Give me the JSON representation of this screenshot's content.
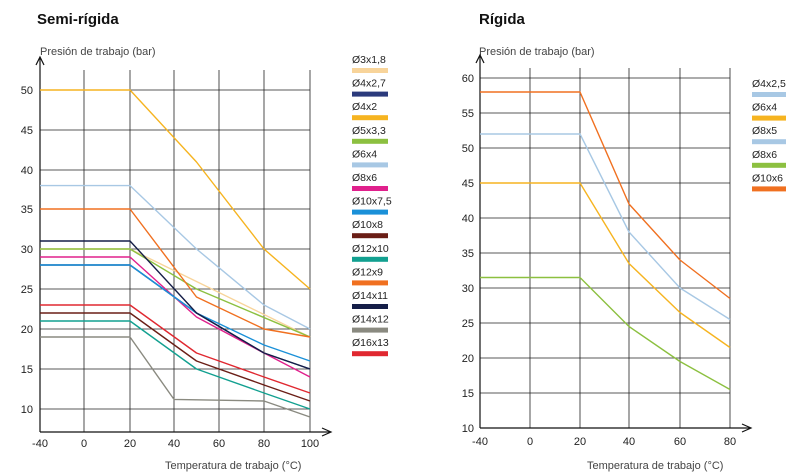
{
  "chart_data": [
    {
      "type": "line",
      "title": "Semi-rígida",
      "ylabel": "Presión de trabajo (bar)",
      "xlabel": "Temperatura de trabajo (°C)",
      "x_ticks": [
        -40,
        0,
        20,
        40,
        60,
        80,
        100
      ],
      "y_ticks": [
        10,
        15,
        20,
        25,
        30,
        35,
        40,
        45,
        50
      ],
      "xlim": [
        -40,
        100
      ],
      "ylim": [
        8,
        52
      ],
      "grid": true,
      "legend_position": "right",
      "series": [
        {
          "name": "Ø3x1,8",
          "color": "#f8d49a",
          "points": [
            [
              -40,
              30
            ],
            [
              20,
              30
            ],
            [
              100,
              19
            ]
          ]
        },
        {
          "name": "Ø4x2,7",
          "color": "#2b3a7c",
          "points": [
            [
              -40,
              28
            ],
            [
              20,
              28
            ],
            [
              50,
              22
            ],
            [
              80,
              17
            ],
            [
              100,
              15
            ]
          ]
        },
        {
          "name": "Ø4x2",
          "color": "#f6b420",
          "points": [
            [
              -40,
              50
            ],
            [
              20,
              50
            ],
            [
              50,
              41
            ],
            [
              80,
              30
            ],
            [
              100,
              25
            ]
          ]
        },
        {
          "name": "Ø5x3,3",
          "color": "#8cc040",
          "points": [
            [
              -40,
              30
            ],
            [
              20,
              30
            ],
            [
              50,
              25
            ],
            [
              100,
              19
            ]
          ]
        },
        {
          "name": "Ø6x4",
          "color": "#a8c8e4",
          "points": [
            [
              -40,
              38
            ],
            [
              20,
              38
            ],
            [
              50,
              30
            ],
            [
              80,
              23
            ],
            [
              100,
              20
            ]
          ]
        },
        {
          "name": "Ø8x6",
          "color": "#e0208c",
          "points": [
            [
              -40,
              29
            ],
            [
              20,
              29
            ],
            [
              50,
              21.5
            ],
            [
              80,
              17
            ],
            [
              100,
              14
            ]
          ]
        },
        {
          "name": "Ø10x7,5",
          "color": "#1a90d8",
          "points": [
            [
              -40,
              28
            ],
            [
              20,
              28
            ],
            [
              50,
              22
            ],
            [
              80,
              18
            ],
            [
              100,
              16
            ]
          ]
        },
        {
          "name": "Ø10x8",
          "color": "#6a1e16",
          "points": [
            [
              -40,
              22
            ],
            [
              20,
              22
            ],
            [
              50,
              16
            ],
            [
              80,
              13
            ],
            [
              100,
              11
            ]
          ]
        },
        {
          "name": "Ø12x10",
          "color": "#12a090",
          "points": [
            [
              -40,
              21
            ],
            [
              20,
              21
            ],
            [
              50,
              15
            ],
            [
              80,
              12
            ],
            [
              100,
              10
            ]
          ]
        },
        {
          "name": "Ø12x9",
          "color": "#f07020",
          "points": [
            [
              -40,
              35
            ],
            [
              20,
              35
            ],
            [
              50,
              24
            ],
            [
              80,
              20
            ],
            [
              100,
              19
            ]
          ]
        },
        {
          "name": "Ø14x11",
          "color": "#151e48",
          "points": [
            [
              -40,
              31
            ],
            [
              20,
              31
            ],
            [
              50,
              22
            ],
            [
              80,
              17
            ],
            [
              100,
              15
            ]
          ]
        },
        {
          "name": "Ø14x12",
          "color": "#8a8a80",
          "points": [
            [
              -40,
              19
            ],
            [
              20,
              19
            ],
            [
              40,
              11.2
            ],
            [
              80,
              11
            ],
            [
              100,
              9
            ]
          ]
        },
        {
          "name": "Ø16x13",
          "color": "#e02830",
          "points": [
            [
              -40,
              23
            ],
            [
              20,
              23
            ],
            [
              50,
              17
            ],
            [
              80,
              14
            ],
            [
              100,
              12
            ]
          ]
        }
      ]
    },
    {
      "type": "line",
      "title": "Rígida",
      "ylabel": "Presión de trabajo (bar)",
      "xlabel": "Temperatura de trabajo (°C)",
      "x_ticks": [
        -40,
        0,
        20,
        40,
        60,
        80
      ],
      "y_ticks": [
        10,
        15,
        20,
        25,
        30,
        35,
        40,
        45,
        50,
        55,
        60
      ],
      "xlim": [
        -40,
        80
      ],
      "ylim": [
        10,
        61
      ],
      "grid": true,
      "legend_position": "right",
      "series": [
        {
          "name": "Ø4x2,5",
          "color": "#a8c8e4",
          "points": [
            [
              -40,
              52
            ],
            [
              20,
              52
            ],
            [
              40,
              38
            ],
            [
              60,
              30
            ],
            [
              80,
              25.5
            ]
          ]
        },
        {
          "name": "Ø6x4",
          "color": "#f6b420",
          "points": [
            [
              -40,
              45
            ],
            [
              20,
              45
            ],
            [
              40,
              33.5
            ],
            [
              60,
              26.5
            ],
            [
              80,
              21.5
            ]
          ]
        },
        {
          "name": "Ø8x5",
          "color": "#a8c8e4",
          "points": []
        },
        {
          "name": "Ø8x6",
          "color": "#8cc040",
          "points": [
            [
              -40,
              31.5
            ],
            [
              20,
              31.5
            ],
            [
              40,
              24.5
            ],
            [
              60,
              19.5
            ],
            [
              80,
              15.5
            ]
          ]
        },
        {
          "name": "Ø10x6",
          "color": "#f07020",
          "points": [
            [
              -40,
              58
            ],
            [
              20,
              58
            ],
            [
              40,
              42
            ],
            [
              60,
              34
            ],
            [
              80,
              28.5
            ]
          ]
        }
      ]
    }
  ]
}
